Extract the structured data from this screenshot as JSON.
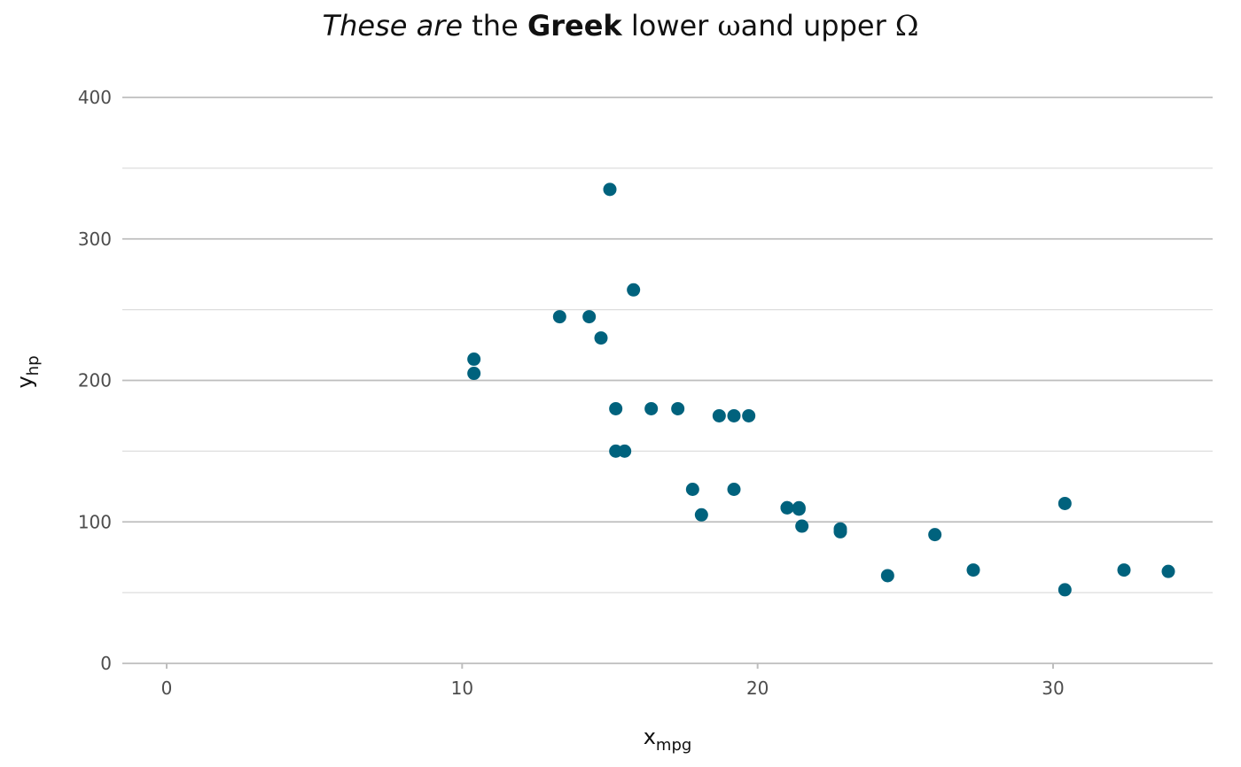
{
  "chart_data": {
    "type": "scatter",
    "title": {
      "italic": "These are",
      "plain1": "the",
      "bold": "Greek",
      "plain2": "lower",
      "omega_lower": "ω",
      "plain3": "and upper",
      "omega_upper": "Ω"
    },
    "xlabel": {
      "main": "x",
      "sub": "mpg"
    },
    "ylabel": {
      "main": "y",
      "sub": "hp"
    },
    "xlim": [
      -1.5,
      35.4
    ],
    "ylim": [
      0,
      400
    ],
    "x_ticks": [
      0,
      10,
      20,
      30
    ],
    "x_tick_labels": [
      "0",
      "10",
      "20",
      "30"
    ],
    "y_ticks": [
      0,
      100,
      200,
      300,
      400
    ],
    "y_tick_labels": [
      "0",
      "100",
      "200",
      "300",
      "400"
    ],
    "y_minor_ticks": [
      50,
      150,
      250,
      350
    ],
    "grid": true,
    "legend": "none",
    "point_color": "#00627d",
    "points": [
      {
        "x": 21.0,
        "y": 110
      },
      {
        "x": 21.0,
        "y": 110
      },
      {
        "x": 22.8,
        "y": 93
      },
      {
        "x": 21.4,
        "y": 110
      },
      {
        "x": 18.7,
        "y": 175
      },
      {
        "x": 18.1,
        "y": 105
      },
      {
        "x": 14.3,
        "y": 245
      },
      {
        "x": 24.4,
        "y": 62
      },
      {
        "x": 22.8,
        "y": 95
      },
      {
        "x": 19.2,
        "y": 123
      },
      {
        "x": 17.8,
        "y": 123
      },
      {
        "x": 16.4,
        "y": 180
      },
      {
        "x": 17.3,
        "y": 180
      },
      {
        "x": 15.2,
        "y": 180
      },
      {
        "x": 10.4,
        "y": 205
      },
      {
        "x": 10.4,
        "y": 215
      },
      {
        "x": 14.7,
        "y": 230
      },
      {
        "x": 32.4,
        "y": 66
      },
      {
        "x": 30.4,
        "y": 52
      },
      {
        "x": 33.9,
        "y": 65
      },
      {
        "x": 21.5,
        "y": 97
      },
      {
        "x": 15.5,
        "y": 150
      },
      {
        "x": 15.2,
        "y": 150
      },
      {
        "x": 13.3,
        "y": 245
      },
      {
        "x": 19.2,
        "y": 175
      },
      {
        "x": 27.3,
        "y": 66
      },
      {
        "x": 26.0,
        "y": 91
      },
      {
        "x": 30.4,
        "y": 113
      },
      {
        "x": 15.8,
        "y": 264
      },
      {
        "x": 19.7,
        "y": 175
      },
      {
        "x": 15.0,
        "y": 335
      },
      {
        "x": 21.4,
        "y": 109
      }
    ]
  }
}
